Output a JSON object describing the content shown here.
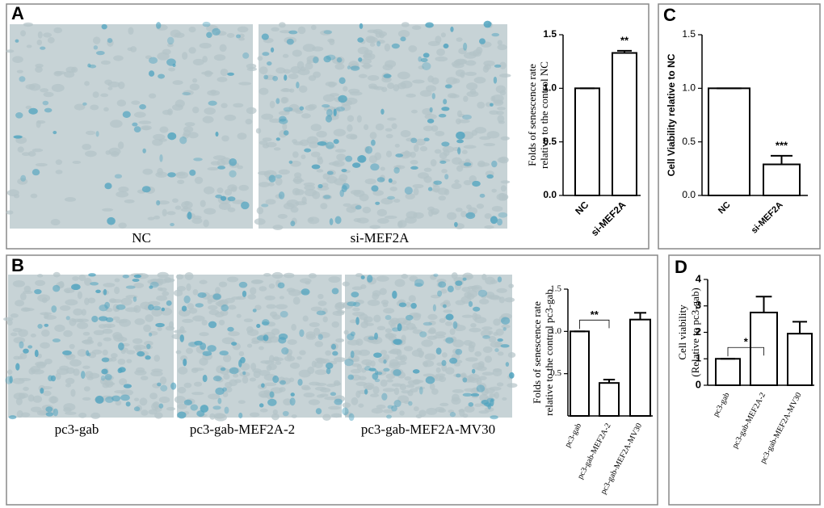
{
  "figure": {
    "panel_labels": [
      "A",
      "B",
      "C",
      "D"
    ],
    "image_captions": [
      "NC",
      "si-MEF2A",
      "pc3-gab",
      "pc3-gab-MEF2A-2",
      "pc3-gab-MEF2A-MV30"
    ]
  },
  "chart_data": [
    {
      "type": "bar",
      "ylabel": [
        "Folds of senescence rate",
        "relative to the control NC"
      ],
      "categories": [
        "NC",
        "si-MEF2A"
      ],
      "values": [
        1.0,
        1.33
      ],
      "errors": [
        0,
        0.02
      ],
      "significance": [
        null,
        "**"
      ],
      "color": "#ffffff",
      "ylim": [
        0,
        1.5
      ],
      "yticks": [
        {
          "value": 0,
          "label": "0.0"
        },
        0.5,
        {
          "value": 1,
          "label": "1.0"
        },
        1.5
      ]
    },
    {
      "type": "bar",
      "ylabel": [
        "Folds of senescence rate",
        "relative to the control pc3-gab"
      ],
      "categories": [
        "pc3-gab",
        "pc3-gab-MEF2A-2",
        "pc3-gab-MEF2A-MV30"
      ],
      "values": [
        1.0,
        0.39,
        1.14
      ],
      "errors": [
        0,
        0.04,
        0.08
      ],
      "significance": [
        null,
        "**",
        null
      ],
      "color": "#ffffff",
      "ylim": [
        0,
        1.5
      ],
      "yticks": [
        0.5,
        {
          "value": 1,
          "label": "1.0"
        },
        1.5
      ]
    },
    {
      "type": "bar",
      "ylabel": [
        "Cell Viability relative to NC"
      ],
      "categories": [
        "NC",
        "si-MEF2A"
      ],
      "values": [
        1.0,
        0.29
      ],
      "errors": [
        0,
        0.08
      ],
      "significance": [
        null,
        "***"
      ],
      "color": "#ffffff",
      "ylim": [
        0,
        1.5
      ],
      "yticks": [
        {
          "value": 0,
          "label": "0.0"
        },
        0.5,
        {
          "value": 1,
          "label": "1.0"
        },
        1.5
      ]
    },
    {
      "type": "bar",
      "ylabel": [
        "Cell viability",
        "(Relative to pc3-gab)"
      ],
      "categories": [
        "pc3-gab",
        "pc3-gab-MEF2A-2",
        "pc3-gab-MEF2A-MV30"
      ],
      "values": [
        1.0,
        2.75,
        1.95
      ],
      "errors": [
        0,
        0.6,
        0.45
      ],
      "significance": [
        null,
        "*",
        null
      ],
      "color": "#ffffff",
      "ylim": [
        0,
        4
      ],
      "yticks": [
        0,
        1,
        2,
        3,
        4
      ]
    }
  ]
}
